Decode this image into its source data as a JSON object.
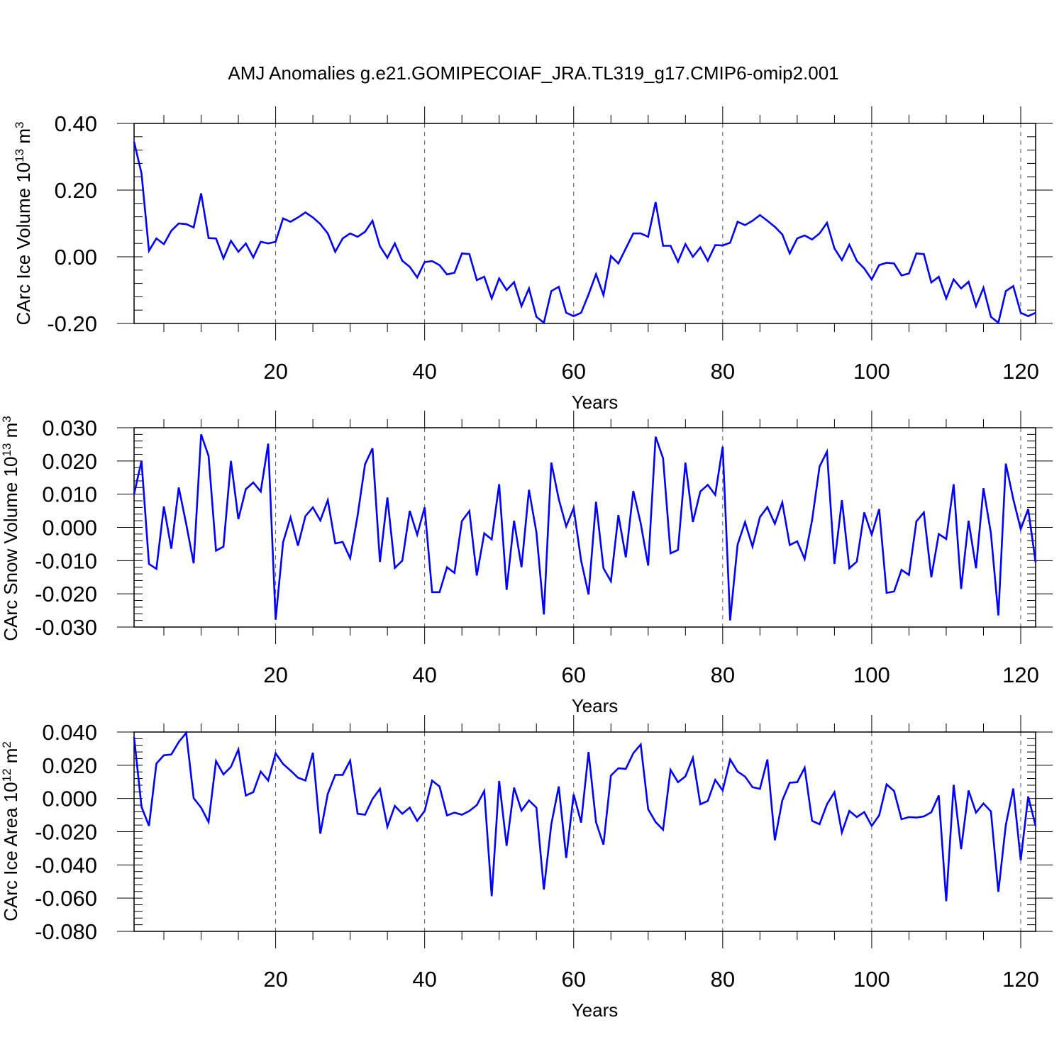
{
  "title": "AMJ Anomalies g.e21.GOMIPECOIAF_JRA.TL319_g17.CMIP6-omip2.001",
  "colors": {
    "line": "#0000ff",
    "axis": "#000000",
    "grid": "#555555"
  },
  "chart_data": [
    {
      "type": "line",
      "ylabel_main": "CArc Ice Volume 10",
      "ylabel_exp": "13",
      "ylabel_unit": "m",
      "ylabel_unit_exp": "3",
      "xlabel": "Years",
      "xlim": [
        1,
        122
      ],
      "ylim": [
        -0.2,
        0.4
      ],
      "xticks": [
        20,
        40,
        60,
        80,
        100,
        120
      ],
      "yticks": [
        -0.2,
        0.0,
        0.2,
        0.4
      ],
      "ytick_labels": [
        "-0.20",
        "0.00",
        "0.20",
        "0.40"
      ],
      "yminor_step": 0.04,
      "values": [
        0.345,
        0.25,
        0.018,
        0.055,
        0.038,
        0.078,
        0.1,
        0.098,
        0.088,
        0.19,
        0.056,
        0.055,
        -0.005,
        0.048,
        0.015,
        0.04,
        -0.002,
        0.045,
        0.04,
        0.045,
        0.115,
        0.105,
        0.118,
        0.133,
        0.118,
        0.098,
        0.07,
        0.015,
        0.055,
        0.07,
        0.06,
        0.075,
        0.108,
        0.032,
        -0.003,
        0.04,
        -0.012,
        -0.03,
        -0.062,
        -0.016,
        -0.013,
        -0.025,
        -0.053,
        -0.048,
        0.01,
        0.008,
        -0.07,
        -0.06,
        -0.125,
        -0.065,
        -0.1,
        -0.076,
        -0.148,
        -0.095,
        -0.18,
        -0.198,
        -0.103,
        -0.09,
        -0.168,
        -0.178,
        -0.168,
        -0.113,
        -0.052,
        -0.115,
        0.002,
        -0.02,
        0.025,
        0.07,
        0.07,
        0.06,
        0.164,
        0.033,
        0.033,
        -0.015,
        0.038,
        0.0,
        0.028,
        -0.012,
        0.035,
        0.034,
        0.042,
        0.105,
        0.095,
        0.108,
        0.125,
        0.108,
        0.09,
        0.067,
        0.01,
        0.055,
        0.064,
        0.052,
        0.07,
        0.102,
        0.025,
        -0.01,
        0.036,
        -0.012,
        -0.035,
        -0.068,
        -0.025,
        -0.018,
        -0.02,
        -0.056,
        -0.05,
        0.01,
        0.008,
        -0.077,
        -0.06,
        -0.125,
        -0.068,
        -0.095,
        -0.075,
        -0.148,
        -0.093,
        -0.18,
        -0.198,
        -0.103,
        -0.088,
        -0.168,
        -0.178,
        -0.168
      ]
    },
    {
      "type": "line",
      "ylabel_main": "CArc Snow Volume 10",
      "ylabel_exp": "13",
      "ylabel_unit": "m",
      "ylabel_unit_exp": "3",
      "xlabel": "Years",
      "xlim": [
        1,
        122
      ],
      "ylim": [
        -0.03,
        0.03
      ],
      "xticks": [
        20,
        40,
        60,
        80,
        100,
        120
      ],
      "yticks": [
        -0.03,
        -0.02,
        -0.01,
        0.0,
        0.01,
        0.02,
        0.03
      ],
      "ytick_labels": [
        "-0.030",
        "-0.020",
        "-0.010",
        "0.000",
        "0.010",
        "0.020",
        "0.030"
      ],
      "yminor_step": 0.002,
      "values": [
        0.01,
        0.02,
        -0.011,
        -0.0125,
        0.0063,
        -0.0064,
        0.012,
        0.001,
        -0.0108,
        0.028,
        0.0215,
        -0.007,
        -0.0058,
        0.02,
        0.0025,
        0.0115,
        0.0135,
        0.0108,
        0.0252,
        -0.0278,
        -0.0045,
        0.003,
        -0.0055,
        0.0034,
        0.006,
        0.0021,
        0.0082,
        -0.0048,
        -0.0044,
        -0.0093,
        0.0035,
        0.019,
        0.0238,
        -0.0104,
        0.009,
        -0.0122,
        -0.01,
        0.005,
        -0.0022,
        0.006,
        -0.0195,
        -0.0195,
        -0.012,
        -0.0137,
        0.0019,
        0.0049,
        -0.0145,
        -0.0018,
        -0.0036,
        0.013,
        -0.0188,
        0.002,
        -0.012,
        0.0113,
        -0.0015,
        -0.0262,
        0.0195,
        0.0085,
        0.0003,
        0.0058,
        -0.01,
        -0.0202,
        0.0077,
        -0.0123,
        -0.0162,
        0.0037,
        -0.009,
        0.011,
        0.0012,
        -0.0115,
        0.0273,
        0.0208,
        -0.0078,
        -0.0068,
        0.0195,
        0.0016,
        0.0108,
        0.0128,
        0.0098,
        0.0243,
        -0.028,
        -0.0052,
        0.0016,
        -0.0058,
        0.0031,
        0.0061,
        0.0011,
        0.0075,
        -0.0053,
        -0.0042,
        -0.0095,
        0.0022,
        0.0183,
        0.0228,
        -0.011,
        0.0082,
        -0.0123,
        -0.0103,
        0.0045,
        -0.0022,
        0.0055,
        -0.0197,
        -0.0193,
        -0.0128,
        -0.0143,
        0.0018,
        0.0045,
        -0.015,
        -0.002,
        -0.0035,
        0.013,
        -0.0185,
        0.002,
        -0.0123,
        0.0118,
        -0.0018,
        -0.0265,
        0.0192,
        0.0085,
        -0.0005,
        0.0055,
        -0.0105
      ]
    },
    {
      "type": "line",
      "ylabel_main": "CArc Ice Area 10",
      "ylabel_exp": "12",
      "ylabel_unit": "m",
      "ylabel_unit_exp": "2",
      "xlabel": "Years",
      "xlim": [
        1,
        122
      ],
      "ylim": [
        -0.08,
        0.04
      ],
      "xticks": [
        20,
        40,
        60,
        80,
        100,
        120
      ],
      "yticks": [
        -0.08,
        -0.06,
        -0.04,
        -0.02,
        0.0,
        0.02,
        0.04
      ],
      "ytick_labels": [
        "-0.080",
        "-0.060",
        "-0.040",
        "-0.020",
        "0.000",
        "0.020",
        "0.040"
      ],
      "yminor_step": 0.004,
      "values": [
        0.037,
        -0.005,
        -0.0165,
        0.021,
        0.026,
        0.0265,
        0.034,
        0.0395,
        0.0002,
        -0.0055,
        -0.0142,
        0.0225,
        0.0145,
        0.019,
        0.0295,
        0.0018,
        0.0038,
        0.0162,
        0.0108,
        0.0272,
        0.0208,
        0.0168,
        0.0125,
        0.0108,
        0.0275,
        -0.0212,
        0.0028,
        0.0142,
        0.0142,
        0.0228,
        -0.0092,
        -0.0098,
        -0.0003,
        0.0058,
        -0.017,
        -0.0045,
        -0.0092,
        -0.0055,
        -0.0135,
        -0.0075,
        0.0108,
        0.0072,
        -0.0102,
        -0.0085,
        -0.0098,
        -0.0075,
        -0.004,
        0.0045,
        -0.0588,
        0.0105,
        -0.0285,
        0.0065,
        -0.0073,
        -0.0012,
        -0.0055,
        -0.0548,
        -0.0155,
        0.0072,
        -0.0358,
        0.0025,
        -0.0145,
        0.028,
        -0.0143,
        -0.0278,
        0.0138,
        0.0182,
        0.0178,
        0.0272,
        0.0325,
        -0.0065,
        -0.0142,
        -0.0188,
        0.0172,
        0.0098,
        0.0133,
        0.0245,
        -0.0035,
        -0.0015,
        0.0112,
        0.0048,
        0.0235,
        0.0162,
        0.0132,
        0.0068,
        0.0058,
        0.0235,
        -0.0252,
        -0.0012,
        0.0095,
        0.0098,
        0.0185,
        -0.0135,
        -0.0155,
        -0.0035,
        0.0038,
        -0.0205,
        -0.0075,
        -0.0112,
        -0.0082,
        -0.0165,
        -0.0102,
        0.0085,
        0.0045,
        -0.0125,
        -0.0112,
        -0.0115,
        -0.0108,
        -0.0083,
        0.0018,
        -0.0618,
        0.0082,
        -0.0305,
        0.0048,
        -0.0085,
        -0.003,
        -0.0078,
        -0.0562,
        -0.016,
        0.006,
        -0.0372,
        0.0012,
        -0.0165
      ]
    }
  ]
}
